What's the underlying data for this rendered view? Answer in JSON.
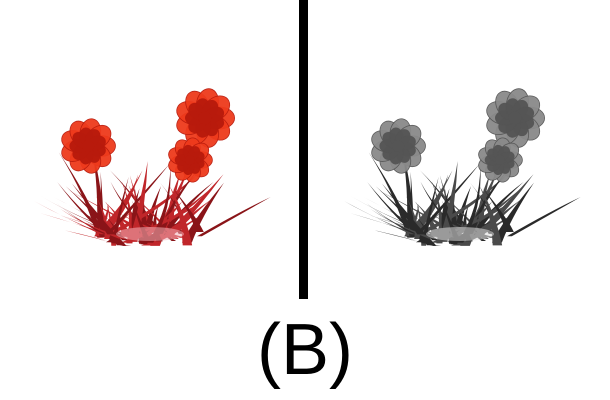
{
  "caption": "(B)",
  "colors": {
    "background": "#ffffff",
    "divider": "#000000",
    "left_flower": "#ee3a1c",
    "left_flower_dark": "#b81a0c",
    "left_stem": "#c0262a",
    "left_stem_dark": "#8a1418",
    "right_flower": "#8a8a8a",
    "right_flower_dark": "#555555",
    "right_stem": "#4a4a4a",
    "right_stem_dark": "#2a2a2a"
  },
  "panels": {
    "left": {
      "variant": "color"
    },
    "right": {
      "variant": "grayscale"
    }
  }
}
